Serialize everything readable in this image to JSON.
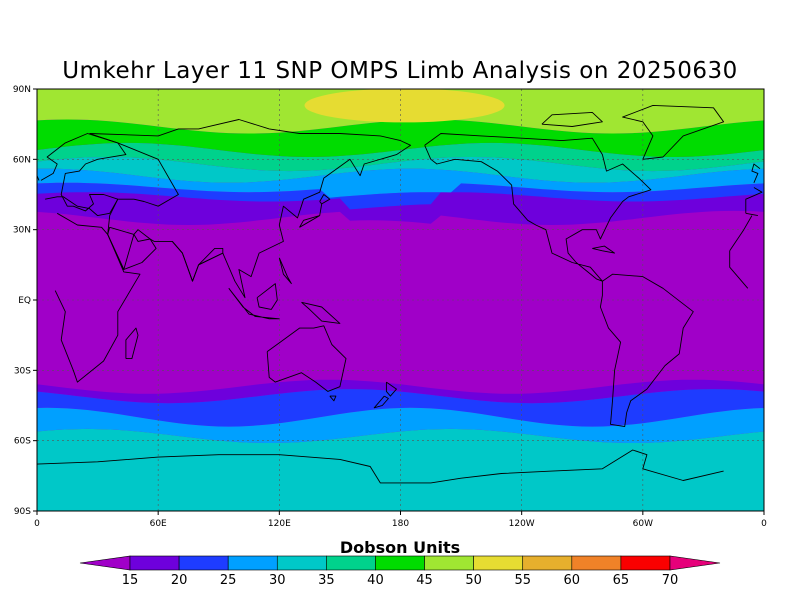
{
  "figure": {
    "title": "Umkehr Layer 11 SNP OMPS Limb Analysis on 20250630"
  },
  "map": {
    "projection": "cylindrical equidistant",
    "lon_range": [
      0,
      360
    ],
    "lat_range": [
      -90,
      90
    ],
    "lat_ticks": [
      {
        "value": 90,
        "label": "90N"
      },
      {
        "value": 60,
        "label": "60N"
      },
      {
        "value": 30,
        "label": "30N"
      },
      {
        "value": 0,
        "label": "EQ"
      },
      {
        "value": -30,
        "label": "30S"
      },
      {
        "value": -60,
        "label": "60S"
      },
      {
        "value": -90,
        "label": "90S"
      }
    ],
    "lon_ticks": [
      {
        "value": 0,
        "label": "0"
      },
      {
        "value": 60,
        "label": "60E"
      },
      {
        "value": 120,
        "label": "120E"
      },
      {
        "value": 180,
        "label": "180"
      },
      {
        "value": 240,
        "label": "120W"
      },
      {
        "value": 300,
        "label": "60W"
      },
      {
        "value": 360,
        "label": "0"
      }
    ],
    "gridlines": "dotted at every labeled tick",
    "coastlines": true
  },
  "colorbar": {
    "title": "Dobson Units",
    "tick_labels": [
      "15",
      "20",
      "25",
      "30",
      "35",
      "40",
      "45",
      "50",
      "55",
      "60",
      "65",
      "70"
    ],
    "levels": [
      15,
      20,
      25,
      30,
      35,
      40,
      45,
      50,
      55,
      60,
      65,
      70
    ],
    "colors": [
      "#a000c8",
      "#6e00dc",
      "#1e3cff",
      "#00a0ff",
      "#00c8c8",
      "#00d28c",
      "#00dc00",
      "#a0e632",
      "#e6dc32",
      "#e6af2d",
      "#f08228",
      "#fa0000",
      "#e6007a"
    ],
    "extend": "both"
  },
  "chart_data": {
    "type": "heatmap",
    "title": "Umkehr Layer 11 SNP OMPS Limb Analysis on 20250630",
    "units": "Dobson Units",
    "field": "Umkehr Layer 11 ozone",
    "date": "20250630",
    "description_of_bands": [
      {
        "lat_range": [
          -35,
          35
        ],
        "value_class": "<15"
      },
      {
        "lat_range": [
          35,
          45
        ],
        "value_class": "15-25"
      },
      {
        "lat_range": [
          45,
          60
        ],
        "value_class": "25-40"
      },
      {
        "lat_range": [
          60,
          90
        ],
        "value_class": "40-55"
      },
      {
        "lat_range": [
          -40,
          -35
        ],
        "value_class": "15-25"
      },
      {
        "lat_range": [
          -55,
          -40
        ],
        "value_class": "20-30"
      },
      {
        "lat_range": [
          -90,
          -55
        ],
        "value_class": "30-35"
      }
    ],
    "max_region": {
      "lat_range": [
        75,
        88
      ],
      "lon_range": [
        150,
        215
      ],
      "value_class": "50-55"
    },
    "zonal_profile": [
      {
        "lat": 90,
        "value": 47
      },
      {
        "lat": 85,
        "value": 48
      },
      {
        "lat": 80,
        "value": 46
      },
      {
        "lat": 75,
        "value": 44
      },
      {
        "lat": 70,
        "value": 42
      },
      {
        "lat": 65,
        "value": 40
      },
      {
        "lat": 60,
        "value": 37
      },
      {
        "lat": 55,
        "value": 33
      },
      {
        "lat": 50,
        "value": 29
      },
      {
        "lat": 45,
        "value": 24
      },
      {
        "lat": 40,
        "value": 19
      },
      {
        "lat": 35,
        "value": 15
      },
      {
        "lat": 30,
        "value": 12
      },
      {
        "lat": 0,
        "value": 10
      },
      {
        "lat": -30,
        "value": 12
      },
      {
        "lat": -35,
        "value": 15
      },
      {
        "lat": -40,
        "value": 20
      },
      {
        "lat": -45,
        "value": 25
      },
      {
        "lat": -50,
        "value": 28
      },
      {
        "lat": -55,
        "value": 31
      },
      {
        "lat": -60,
        "value": 33
      },
      {
        "lat": -70,
        "value": 34
      },
      {
        "lat": -90,
        "value": 34
      }
    ],
    "xlabel": "",
    "ylabel": "",
    "xlim": [
      0,
      360
    ],
    "ylim": [
      -90,
      90
    ]
  }
}
